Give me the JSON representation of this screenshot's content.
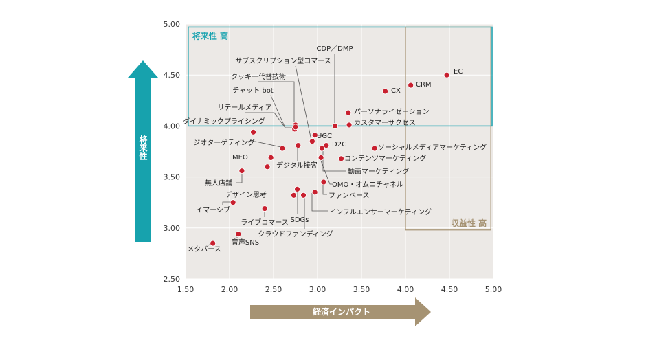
{
  "colors": {
    "plot_bg": "#ece9e6",
    "grid": "#ffffff",
    "point": "#c8202f",
    "future_box": "#1aa3b0",
    "profit_box": "#a69373",
    "y_arrow": "#17a2ad",
    "x_arrow": "#a69373"
  },
  "chart_data": {
    "type": "scatter",
    "title": "",
    "xlabel": "経済インパクト",
    "ylabel": "将来性",
    "xlim": [
      1.5,
      5.0
    ],
    "ylim": [
      2.5,
      5.0
    ],
    "x_ticks": [
      "1.50",
      "2.00",
      "2.50",
      "3.00",
      "3.50",
      "4.00",
      "4.50",
      "5.00"
    ],
    "y_ticks": [
      "2.50",
      "3.00",
      "3.50",
      "4.00",
      "4.50",
      "5.00"
    ],
    "grid": true,
    "regions": [
      {
        "name": "future_high",
        "label": "将来性 高",
        "x": [
          1.53,
          5.0
        ],
        "y": [
          4.0,
          4.97
        ]
      },
      {
        "name": "profit_high",
        "label": "収益性 高",
        "x": [
          4.0,
          4.97
        ],
        "y": [
          2.98,
          4.97
        ]
      }
    ],
    "points": [
      {
        "label": "EC",
        "x": 4.47,
        "y": 4.5
      },
      {
        "label": "CRM",
        "x": 4.06,
        "y": 4.4
      },
      {
        "label": "CX",
        "x": 3.77,
        "y": 4.34
      },
      {
        "label": "CDP／DMP",
        "x": 3.2,
        "y": 4.0
      },
      {
        "label": "サブスクリプション型コマース",
        "x": 2.94,
        "y": 3.85
      },
      {
        "label": "クッキー代替技術",
        "x": 2.75,
        "y": 4.01
      },
      {
        "label": "チャット bot",
        "x": 2.74,
        "y": 3.97
      },
      {
        "label": "リテールメディア",
        "x": 2.75,
        "y": 3.99
      },
      {
        "label": "パーソナライゼーション",
        "x": 3.35,
        "y": 4.13
      },
      {
        "label": "カスタマーサクセス",
        "x": 3.36,
        "y": 4.01
      },
      {
        "label": "ダイナミックプライシング",
        "x": 2.27,
        "y": 3.94
      },
      {
        "label": "UGC",
        "x": 2.97,
        "y": 3.91
      },
      {
        "label": "ジオターゲティング",
        "x": 2.6,
        "y": 3.78
      },
      {
        "label": "D2C",
        "x": 3.1,
        "y": 3.81
      },
      {
        "label": "ソーシャルメディアマーケティング",
        "x": 3.65,
        "y": 3.78
      },
      {
        "label": "MEO",
        "x": 2.47,
        "y": 3.69
      },
      {
        "label": "デジタル接客",
        "x": 2.43,
        "y": 3.6
      },
      {
        "label": "コンテンツマーケティング",
        "x": 3.27,
        "y": 3.68
      },
      {
        "label": "動画マーケティング",
        "x": 3.05,
        "y": 3.78
      },
      {
        "label": "無人店舗",
        "x": 2.14,
        "y": 3.56
      },
      {
        "label": "OMO・オムニチャネル",
        "x": 3.04,
        "y": 3.69
      },
      {
        "label": "ファンベース",
        "x": 3.07,
        "y": 3.45
      },
      {
        "label": "デザイン思考",
        "x": 2.73,
        "y": 3.32
      },
      {
        "label": "SDGs",
        "x": 2.77,
        "y": 3.38
      },
      {
        "label": "インフルエンサーマーケティング",
        "x": 2.97,
        "y": 3.35
      },
      {
        "label": "クラウドファンディング",
        "x": 2.84,
        "y": 3.32
      },
      {
        "label": "イマーシブ",
        "x": 2.04,
        "y": 3.25
      },
      {
        "label": "ライブコマース",
        "x": 2.4,
        "y": 3.19
      },
      {
        "label": "音声SNS",
        "x": 2.1,
        "y": 2.94
      },
      {
        "label": "メタバース",
        "x": 1.81,
        "y": 2.85
      },
      {
        "label": "",
        "x": 2.78,
        "y": 3.81
      }
    ]
  }
}
